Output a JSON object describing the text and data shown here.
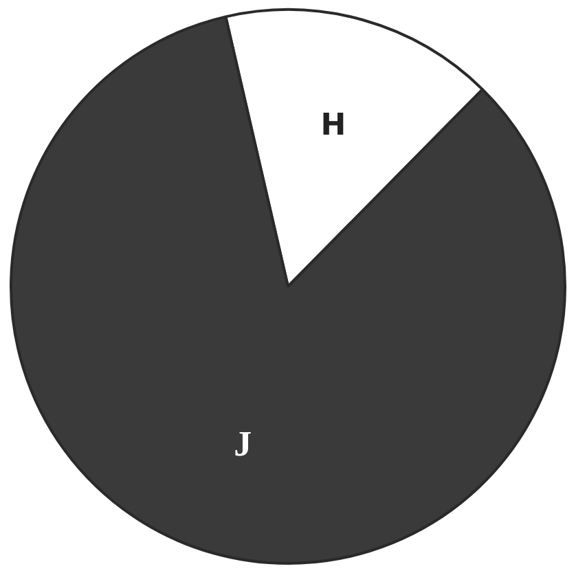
{
  "chart_data": {
    "type": "pie",
    "categories": [
      "H",
      "J"
    ],
    "values": [
      16,
      84
    ],
    "colors": [
      "#ffffff",
      "#3a3a3a"
    ],
    "legend": false
  }
}
